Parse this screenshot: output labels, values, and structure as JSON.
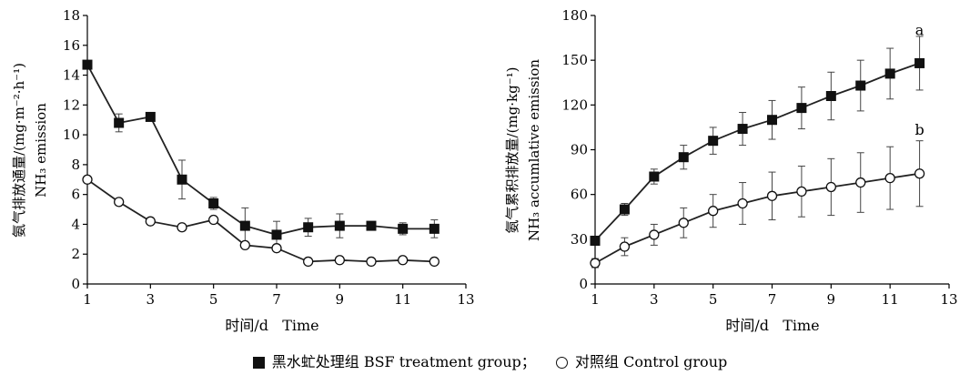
{
  "legend": {
    "treatment": "黑水虻处理组 BSF treatment group；",
    "control": "对照组 Control group"
  },
  "chart_data": [
    {
      "type": "line",
      "xlabel": "时间/d   Time",
      "ylabel_cn": "氨气排放通量/(mg·m⁻²·h⁻¹)",
      "ylabel_en": "NH₃ emission",
      "xlim": [
        1,
        13
      ],
      "ylim": [
        0,
        18
      ],
      "xticks": [
        1,
        3,
        5,
        7,
        9,
        11,
        13
      ],
      "yticks": [
        0,
        2,
        4,
        6,
        8,
        10,
        12,
        14,
        16,
        18
      ],
      "x": [
        1,
        2,
        3,
        4,
        5,
        6,
        7,
        8,
        9,
        10,
        11,
        12
      ],
      "series": [
        {
          "key": "treatment",
          "marker": "filled-square",
          "values": [
            14.7,
            10.8,
            11.2,
            7.0,
            5.4,
            3.9,
            3.3,
            3.8,
            3.9,
            3.9,
            3.7,
            3.7
          ],
          "errors": [
            0.2,
            0.6,
            0.2,
            1.3,
            0.4,
            1.2,
            0.9,
            0.6,
            0.8,
            0.2,
            0.4,
            0.6
          ]
        },
        {
          "key": "control",
          "marker": "open-circle",
          "values": [
            7.0,
            5.5,
            4.2,
            3.8,
            4.3,
            2.6,
            2.4,
            1.5,
            1.6,
            1.5,
            1.6,
            1.5
          ],
          "errors": [
            0.1,
            0.1,
            0.1,
            0.1,
            0.1,
            0.1,
            0.1,
            0.1,
            0.1,
            0.1,
            0.1,
            0.1
          ]
        }
      ],
      "annotations": []
    },
    {
      "type": "line",
      "xlabel": "时间/d   Time",
      "ylabel_cn": "氨气累积排放量/(mg·kg⁻¹)",
      "ylabel_en": "NH₃ accumlative emission",
      "xlim": [
        1,
        13
      ],
      "ylim": [
        0,
        180
      ],
      "xticks": [
        1,
        3,
        5,
        7,
        9,
        11,
        13
      ],
      "yticks": [
        0,
        30,
        60,
        90,
        120,
        150,
        180
      ],
      "x": [
        1,
        2,
        3,
        4,
        5,
        6,
        7,
        8,
        9,
        10,
        11,
        12
      ],
      "series": [
        {
          "key": "treatment",
          "marker": "filled-square",
          "values": [
            29,
            50,
            72,
            85,
            96,
            104,
            110,
            118,
            126,
            133,
            141,
            148
          ],
          "errors": [
            3,
            4,
            5,
            8,
            9,
            11,
            13,
            14,
            16,
            17,
            17,
            18
          ]
        },
        {
          "key": "control",
          "marker": "open-circle",
          "values": [
            14,
            25,
            33,
            41,
            49,
            54,
            59,
            62,
            65,
            68,
            71,
            74
          ],
          "errors": [
            3,
            6,
            7,
            10,
            11,
            14,
            16,
            17,
            19,
            20,
            21,
            22
          ]
        }
      ],
      "annotations": [
        {
          "text": "a",
          "x": 12,
          "y": 167
        },
        {
          "text": "b",
          "x": 12,
          "y": 100
        }
      ]
    }
  ]
}
